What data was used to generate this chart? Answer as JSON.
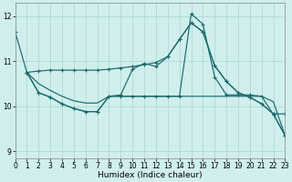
{
  "xlabel": "Humidex (Indice chaleur)",
  "bg_color": "#d0eeec",
  "grid_color": "#a8d8d4",
  "line_color": "#1a6b6b",
  "xlim": [
    0,
    23
  ],
  "ylim": [
    8.85,
    12.3
  ],
  "yticks": [
    9,
    10,
    11,
    12
  ],
  "xticks": [
    0,
    1,
    2,
    3,
    4,
    5,
    6,
    7,
    8,
    9,
    10,
    11,
    12,
    13,
    14,
    15,
    16,
    17,
    18,
    19,
    20,
    21,
    22,
    23
  ],
  "line1_x": [
    0,
    1,
    2,
    3,
    4,
    5,
    6,
    7,
    8,
    9,
    10,
    11,
    12,
    13,
    14,
    15,
    16,
    17,
    18,
    19,
    20,
    21,
    22,
    23
  ],
  "line1_y": [
    11.65,
    10.75,
    10.78,
    10.8,
    10.8,
    10.8,
    10.8,
    10.8,
    10.82,
    10.85,
    10.88,
    10.92,
    10.97,
    11.1,
    11.48,
    11.85,
    11.65,
    10.9,
    10.55,
    10.3,
    10.2,
    10.05,
    9.83,
    9.83
  ],
  "line2_x": [
    1,
    2,
    3,
    4,
    5,
    6,
    7,
    8,
    9,
    10,
    11,
    12,
    13,
    14,
    15,
    16,
    17,
    18,
    19,
    20,
    21,
    22,
    23
  ],
  "line2_y": [
    10.75,
    10.5,
    10.35,
    10.22,
    10.12,
    10.07,
    10.07,
    10.22,
    10.22,
    10.22,
    10.22,
    10.22,
    10.22,
    10.22,
    10.22,
    10.22,
    10.22,
    10.22,
    10.22,
    10.22,
    10.22,
    10.1,
    9.35
  ],
  "line3_x": [
    1,
    2,
    3,
    4,
    5,
    6,
    7,
    8,
    9,
    10,
    11,
    12,
    13,
    14,
    15,
    16,
    17,
    18,
    19,
    20,
    21,
    22,
    23
  ],
  "line3_y": [
    10.75,
    10.3,
    10.2,
    10.05,
    9.95,
    9.88,
    9.88,
    10.22,
    10.22,
    10.22,
    10.22,
    10.22,
    10.22,
    10.22,
    12.05,
    11.82,
    10.65,
    10.25,
    10.25,
    10.25,
    10.22,
    9.82,
    9.35
  ],
  "line4_x": [
    1,
    2,
    3,
    4,
    5,
    6,
    7,
    8,
    9,
    10,
    11,
    12,
    13,
    14,
    15,
    16,
    17,
    18,
    19,
    20,
    21,
    22,
    23
  ],
  "line4_y": [
    10.75,
    10.3,
    10.2,
    10.05,
    9.95,
    9.88,
    9.88,
    10.22,
    10.25,
    10.82,
    10.95,
    10.88,
    11.1,
    11.48,
    11.85,
    11.65,
    10.9,
    10.55,
    10.3,
    10.2,
    10.05,
    9.83,
    9.35
  ]
}
